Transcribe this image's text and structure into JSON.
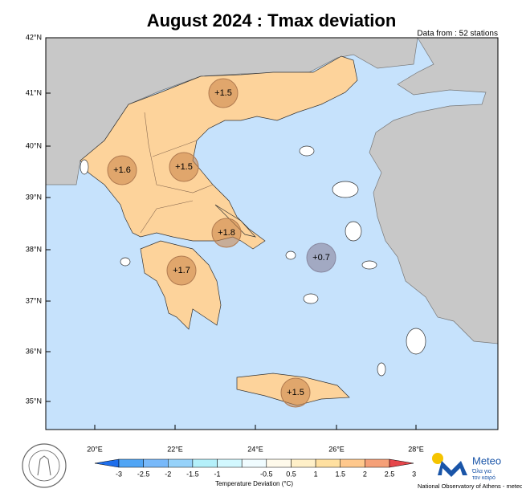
{
  "header": {
    "title": "August 2024 : Tmax deviation",
    "subtitle": "Data from : 52 stations"
  },
  "map": {
    "lat_labels": [
      "42°N",
      "41°N",
      "40°N",
      "39°N",
      "38°N",
      "37°N",
      "36°N",
      "35°N"
    ],
    "lon_labels": [
      "20°E",
      "22°E",
      "24°E",
      "26°E",
      "28°E"
    ],
    "regions": [
      {
        "label": "+1.5"
      },
      {
        "label": "+1.6"
      },
      {
        "label": "+1.5"
      },
      {
        "label": "+1.8"
      },
      {
        "label": "+1.7"
      },
      {
        "label": "+0.7"
      },
      {
        "label": "+1.5"
      }
    ]
  },
  "colorbar": {
    "ticks": [
      "-3",
      "-2.5",
      "-2",
      "-1.5",
      "-1",
      "-0.5",
      "0.5",
      "1",
      "1.5",
      "2",
      "2.5",
      "3"
    ],
    "label": "Temperature Deviation (°C)",
    "colors": [
      "#1e6eeb",
      "#50a5f5",
      "#78b9fa",
      "#96d2fa",
      "#b4f0fa",
      "#d2f8ff",
      "#f0fcff",
      "#fffaeb",
      "#fff0c8",
      "#ffe0a0",
      "#ffc88c",
      "#f5a078",
      "#e6464b"
    ]
  },
  "logo": {
    "brand": "Meteo",
    "tagline_1": "Όλα για",
    "tagline_2": "τον καιρό",
    "credit": "National Observatory of Athens - meteo.gr"
  }
}
